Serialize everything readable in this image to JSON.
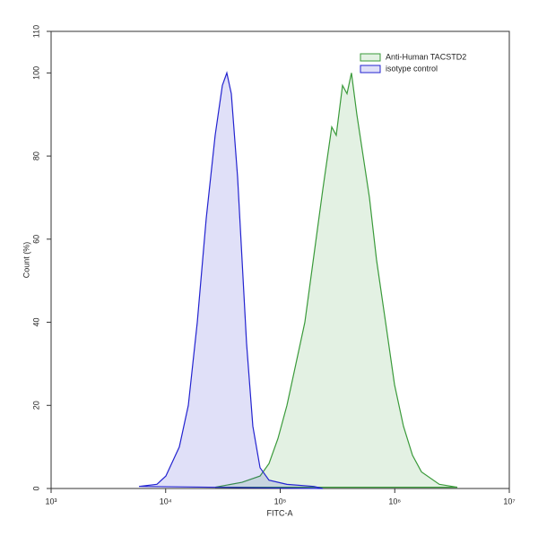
{
  "chart_data": {
    "type": "area",
    "x_label": "FITC-A",
    "y_label": "Count (%)",
    "xscale": "log",
    "xlim": [
      1000,
      10000000
    ],
    "xticks": [
      {
        "value": 1000,
        "label": "10³"
      },
      {
        "value": 10000,
        "label": "10⁴"
      },
      {
        "value": 100000,
        "label": "10⁵"
      },
      {
        "value": 1000000,
        "label": "10⁶"
      },
      {
        "value": 10000000,
        "label": "10⁷"
      }
    ],
    "ylim": [
      0,
      110
    ],
    "yticks": [
      0,
      20,
      40,
      60,
      80,
      100,
      110
    ],
    "legend": "upper right",
    "series": [
      {
        "name": "Anti-Human TACSTD2",
        "color": "#3a9a3a",
        "x": [
          27050,
          46450,
          66680,
          79800,
          95500,
          114500,
          137100,
          164100,
          196600,
          235500,
          281800,
          308300,
          349900,
          382900,
          418800,
          466700,
          529700,
          601200,
          693400,
          831800,
          995400,
          1191000,
          1428000,
          1710000,
          2449000,
          3516000
        ],
        "values": [
          0.3,
          1.5,
          3,
          6,
          12,
          20,
          30,
          40,
          56,
          72,
          87,
          85,
          97,
          95,
          100,
          90,
          80,
          70,
          55,
          40,
          25,
          15,
          8,
          4,
          1,
          0.3
        ]
      },
      {
        "name": "isotype control",
        "color": "#2323d0",
        "x": [
          5850,
          8390,
          10040,
          13160,
          15770,
          18880,
          22600,
          27050,
          31260,
          34200,
          37430,
          42450,
          46450,
          50830,
          57680,
          66680,
          79800,
          114500,
          196600,
          235500
        ],
        "values": [
          0.5,
          1,
          3,
          10,
          20,
          40,
          65,
          85,
          97,
          100,
          95,
          75,
          55,
          35,
          15,
          5,
          2,
          1,
          0.5,
          0
        ]
      }
    ]
  }
}
